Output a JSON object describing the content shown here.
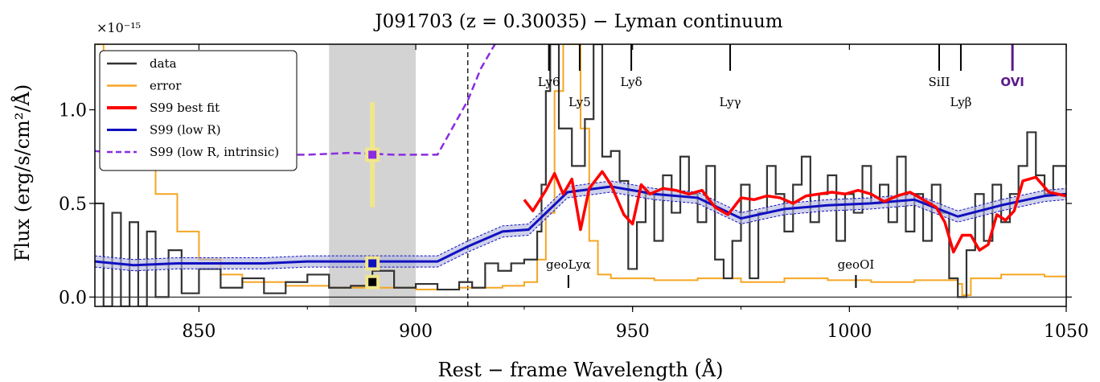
{
  "chart_data": {
    "type": "line",
    "title": "J091703 (z = 0.30035) − Lyman continuum",
    "xlabel": "Rest − frame Wavelength (Å)",
    "ylabel": "Flux (erg/s/cm²/Å)",
    "y_multiplier": "×10⁻¹⁵",
    "xlim": [
      826,
      1050
    ],
    "ylim": [
      -0.05,
      1.35
    ],
    "x_ticks": [
      850,
      900,
      950,
      1000,
      1050
    ],
    "y_ticks": [
      0.0,
      0.5,
      1.0
    ],
    "x_tick_labels": [
      "850",
      "900",
      "950",
      "1000",
      "1050"
    ],
    "y_tick_labels": [
      "0.0",
      "0.5",
      "1.0"
    ],
    "shaded_region": [
      880,
      900
    ],
    "lyman_limit": 912,
    "grid": false,
    "legend_position": "upper-left",
    "legend": [
      "data",
      "error",
      "S99 best fit",
      "S99 (low R)",
      "S99 (low R, intrinsic)"
    ],
    "colors": {
      "data": "#333333",
      "error": "#f5a623",
      "best_fit": "#ff0000",
      "low_r": "#1010c0",
      "intrinsic": "#8a2be2",
      "shade": "#d3d3d3",
      "ovi": "#5a1a8a",
      "errorbar": "#f0e68c"
    },
    "line_labels": [
      {
        "text": "Ly6",
        "x": 930.7,
        "level": "upper"
      },
      {
        "text": "Ly5",
        "x": 937.8,
        "level": "middle"
      },
      {
        "text": "Lyδ",
        "x": 949.7,
        "level": "upper"
      },
      {
        "text": "Lyγ",
        "x": 972.5,
        "level": "middle"
      },
      {
        "text": "SiII",
        "x": 1020.7,
        "level": "upper"
      },
      {
        "text": "Lyβ",
        "x": 1025.7,
        "level": "middle"
      },
      {
        "text": "OVI",
        "x": 1037.6,
        "level": "upper"
      },
      {
        "text": "geoLyα",
        "x": 935.2,
        "level": "lower"
      },
      {
        "text": "geoOI",
        "x": 1001.5,
        "level": "lower"
      }
    ],
    "series": [
      {
        "name": "S99 (low R, intrinsic)",
        "x": [
          826,
          835,
          845,
          855,
          865,
          875,
          885,
          895,
          905,
          912,
          915,
          920
        ],
        "y": [
          0.78,
          0.76,
          0.75,
          0.75,
          0.76,
          0.76,
          0.77,
          0.76,
          0.76,
          1.05,
          1.22,
          1.42
        ]
      },
      {
        "name": "S99 (low R)",
        "x": [
          826,
          835,
          845,
          855,
          865,
          875,
          885,
          895,
          905,
          912,
          920,
          926,
          935,
          945,
          955,
          965,
          975,
          985,
          995,
          1005,
          1015,
          1025,
          1035,
          1045,
          1050
        ],
        "y": [
          0.19,
          0.17,
          0.18,
          0.18,
          0.18,
          0.19,
          0.19,
          0.19,
          0.19,
          0.27,
          0.35,
          0.36,
          0.56,
          0.59,
          0.55,
          0.53,
          0.42,
          0.47,
          0.49,
          0.5,
          0.52,
          0.43,
          0.49,
          0.54,
          0.55
        ]
      },
      {
        "name": "S99 best fit",
        "x": [
          925,
          927,
          930,
          932,
          934,
          936,
          938,
          940,
          943,
          945,
          948,
          950,
          952,
          954,
          957,
          960,
          963,
          966,
          969,
          972,
          975,
          978,
          981,
          984,
          987,
          990,
          993,
          996,
          999,
          1002,
          1005,
          1008,
          1011,
          1014,
          1017,
          1020,
          1022,
          1024,
          1026,
          1028,
          1030,
          1032,
          1034,
          1036,
          1038,
          1040,
          1043,
          1046,
          1050
        ],
        "y": [
          0.52,
          0.46,
          0.57,
          0.66,
          0.55,
          0.63,
          0.36,
          0.58,
          0.67,
          0.6,
          0.44,
          0.39,
          0.6,
          0.55,
          0.58,
          0.57,
          0.55,
          0.57,
          0.48,
          0.44,
          0.53,
          0.52,
          0.54,
          0.53,
          0.5,
          0.54,
          0.55,
          0.56,
          0.55,
          0.57,
          0.55,
          0.51,
          0.54,
          0.56,
          0.52,
          0.48,
          0.4,
          0.24,
          0.33,
          0.33,
          0.25,
          0.28,
          0.44,
          0.41,
          0.46,
          0.62,
          0.64,
          0.56,
          0.54
        ]
      },
      {
        "name": "data",
        "x": [
          826,
          828,
          830,
          832,
          834,
          836,
          838,
          840,
          843,
          846,
          850,
          855,
          860,
          865,
          870,
          875,
          880,
          885,
          890,
          895,
          900,
          905,
          910,
          913,
          916,
          919,
          922,
          925,
          928,
          929,
          930,
          931,
          933,
          936,
          939,
          941,
          943,
          945,
          947,
          949,
          951,
          953,
          955,
          957,
          959,
          961,
          963,
          965,
          967,
          969,
          971,
          973,
          975,
          977,
          979,
          981,
          983,
          985,
          987,
          989,
          991,
          993,
          995,
          997,
          999,
          1001,
          1003,
          1005,
          1007,
          1009,
          1011,
          1013,
          1015,
          1017,
          1019,
          1021,
          1023,
          1025,
          1027,
          1029,
          1031,
          1033,
          1035,
          1037,
          1039,
          1041,
          1043,
          1045,
          1047,
          1050
        ],
        "y": [
          0.5,
          -0.05,
          0.45,
          -0.05,
          0.4,
          -0.05,
          0.35,
          0.0,
          0.25,
          0.02,
          0.15,
          0.05,
          0.1,
          0.02,
          0.08,
          0.12,
          0.05,
          0.06,
          0.14,
          0.05,
          0.07,
          0.04,
          0.08,
          0.05,
          0.18,
          0.14,
          0.18,
          0.2,
          0.35,
          0.6,
          1.1,
          1.35,
          0.9,
          0.7,
          0.95,
          1.35,
          0.75,
          0.78,
          0.62,
          0.15,
          0.4,
          0.55,
          0.3,
          0.65,
          0.45,
          0.75,
          0.55,
          0.4,
          0.7,
          0.2,
          0.1,
          0.3,
          0.6,
          0.1,
          0.45,
          0.7,
          0.55,
          0.35,
          0.6,
          0.75,
          0.4,
          0.55,
          0.65,
          0.3,
          0.55,
          0.45,
          0.7,
          0.5,
          0.6,
          0.4,
          0.75,
          0.35,
          0.55,
          0.3,
          0.6,
          0.45,
          0.1,
          0.0,
          0.25,
          0.55,
          0.3,
          0.6,
          0.4,
          0.55,
          0.7,
          0.88,
          0.65,
          0.55,
          0.7,
          0.6
        ]
      },
      {
        "name": "error",
        "x": [
          826,
          828,
          830,
          832,
          834,
          836,
          838,
          840,
          845,
          850,
          855,
          860,
          870,
          880,
          890,
          900,
          910,
          920,
          925,
          928,
          930,
          932,
          934,
          936,
          938,
          940,
          942,
          945,
          955,
          965,
          975,
          985,
          995,
          1005,
          1015,
          1025,
          1026,
          1028,
          1035,
          1045,
          1050
        ],
        "y": [
          1.35,
          1.1,
          1.05,
          0.95,
          0.85,
          0.75,
          0.7,
          0.55,
          0.35,
          0.2,
          0.12,
          0.08,
          0.06,
          0.05,
          0.05,
          0.04,
          0.05,
          0.06,
          0.08,
          0.2,
          0.45,
          1.1,
          1.35,
          1.35,
          0.9,
          0.3,
          0.12,
          0.1,
          0.09,
          0.1,
          0.08,
          0.1,
          0.09,
          0.08,
          0.09,
          0.07,
          0.01,
          0.1,
          0.12,
          0.11,
          0.11
        ]
      }
    ],
    "points": [
      {
        "name": "S99 (low R, intrinsic)",
        "x": 890,
        "y": 0.76,
        "yerr": 0.28
      },
      {
        "name": "S99 (low R)",
        "x": 890,
        "y": 0.18,
        "yerr": 0.0
      },
      {
        "name": "data",
        "x": 890,
        "y": 0.08,
        "yerr": 0.0
      }
    ]
  }
}
